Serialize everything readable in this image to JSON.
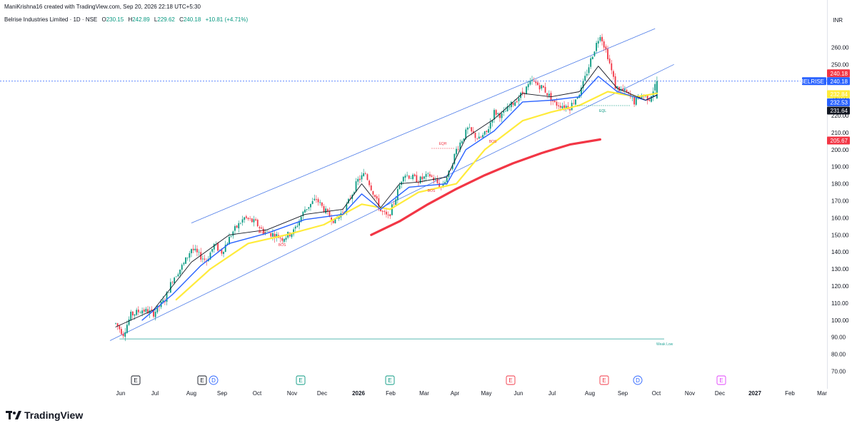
{
  "header": {
    "attribution": "ManiKrishna16 created with TradingView.com, Sep 20, 2026 22:18 UTC+5:30",
    "symbol": "Belrise Industries Limited · 1D · NSE",
    "ohlc": [
      {
        "k": "O",
        "v": "230.15"
      },
      {
        "k": "H",
        "v": "242.89"
      },
      {
        "k": "L",
        "v": "229.62"
      },
      {
        "k": "C",
        "v": "240.18"
      },
      {
        "k": "",
        "v": "+10.81 (+4.71%)"
      }
    ],
    "currency": "INR"
  },
  "brand": "TradingView",
  "colors": {
    "up": "#089981",
    "down": "#f23645",
    "ema_fast": "#131722",
    "ema_mid": "#2962ff",
    "ema_slow": "#ffeb3b",
    "sma_long": "#f23645",
    "channel": "#4c7be8",
    "weak_low": "#26a69a"
  },
  "chart_data": {
    "type": "candlestick",
    "ylim": [
      70,
      275
    ],
    "y_ticks": [
      70,
      80,
      90,
      100,
      110,
      120,
      130,
      140,
      150,
      160,
      170,
      180,
      190,
      200,
      210,
      220,
      230,
      240,
      250,
      260
    ],
    "x_ticks": [
      "Jun",
      "Jul",
      "Aug",
      "Sep",
      "Oct",
      "Nov",
      "Dec",
      "2026",
      "Feb",
      "Mar",
      "Apr",
      "May",
      "Jun",
      "Jul",
      "Aug",
      "Sep",
      "Oct",
      "Nov",
      "Dec",
      "2027",
      "Feb",
      "Mar"
    ],
    "last_price": {
      "symbol": "BELRISE",
      "value": "240.18",
      "close_label": "240.18"
    },
    "price_labels": [
      {
        "value": "232.84",
        "series": "ema_slow"
      },
      {
        "value": "232.53",
        "series": "ema_mid"
      },
      {
        "value": "231.64",
        "series": "ema_fast"
      },
      {
        "value": "205.67",
        "series": "sma_long"
      }
    ],
    "candle_path": [
      [
        0,
        98
      ],
      [
        4,
        92
      ],
      [
        8,
        103
      ],
      [
        14,
        106
      ],
      [
        20,
        104
      ],
      [
        26,
        112
      ],
      [
        30,
        124
      ],
      [
        36,
        133
      ],
      [
        40,
        142
      ],
      [
        44,
        138
      ],
      [
        48,
        135
      ],
      [
        52,
        144
      ],
      [
        56,
        140
      ],
      [
        62,
        152
      ],
      [
        68,
        160
      ],
      [
        74,
        157
      ],
      [
        78,
        152
      ],
      [
        84,
        150
      ],
      [
        88,
        148
      ],
      [
        94,
        152
      ],
      [
        100,
        165
      ],
      [
        106,
        171
      ],
      [
        112,
        162
      ],
      [
        116,
        158
      ],
      [
        122,
        167
      ],
      [
        128,
        182
      ],
      [
        132,
        186
      ],
      [
        136,
        175
      ],
      [
        140,
        164
      ],
      [
        144,
        160
      ],
      [
        148,
        172
      ],
      [
        152,
        186
      ],
      [
        156,
        184
      ],
      [
        160,
        182
      ],
      [
        166,
        185
      ],
      [
        172,
        178
      ],
      [
        176,
        186
      ],
      [
        180,
        200
      ],
      [
        186,
        212
      ],
      [
        192,
        206
      ],
      [
        196,
        210
      ],
      [
        200,
        222
      ],
      [
        204,
        220
      ],
      [
        208,
        225
      ],
      [
        214,
        232
      ],
      [
        220,
        240
      ],
      [
        226,
        236
      ],
      [
        232,
        227
      ],
      [
        236,
        226
      ],
      [
        240,
        225
      ],
      [
        246,
        235
      ],
      [
        252,
        256
      ],
      [
        256,
        268
      ],
      [
        260,
        255
      ],
      [
        264,
        237
      ],
      [
        270,
        233
      ],
      [
        274,
        228
      ],
      [
        278,
        232
      ],
      [
        282,
        230
      ],
      [
        286,
        240
      ]
    ],
    "ema_fast": [
      [
        0,
        96
      ],
      [
        20,
        106
      ],
      [
        40,
        134
      ],
      [
        60,
        150
      ],
      [
        80,
        153
      ],
      [
        100,
        162
      ],
      [
        120,
        165
      ],
      [
        130,
        180
      ],
      [
        140,
        166
      ],
      [
        150,
        180
      ],
      [
        160,
        181
      ],
      [
        175,
        184
      ],
      [
        185,
        207
      ],
      [
        200,
        218
      ],
      [
        215,
        233
      ],
      [
        230,
        231
      ],
      [
        245,
        234
      ],
      [
        255,
        249
      ],
      [
        265,
        236
      ],
      [
        280,
        229
      ],
      [
        286,
        232
      ]
    ],
    "ema_mid": [
      [
        14,
        100
      ],
      [
        30,
        115
      ],
      [
        45,
        132
      ],
      [
        60,
        145
      ],
      [
        80,
        151
      ],
      [
        100,
        159
      ],
      [
        120,
        162
      ],
      [
        130,
        174
      ],
      [
        140,
        165
      ],
      [
        155,
        178
      ],
      [
        175,
        180
      ],
      [
        185,
        200
      ],
      [
        200,
        211
      ],
      [
        215,
        228
      ],
      [
        230,
        229
      ],
      [
        245,
        231
      ],
      [
        255,
        243
      ],
      [
        265,
        234
      ],
      [
        280,
        229
      ],
      [
        286,
        232
      ]
    ],
    "ema_slow": [
      [
        32,
        112
      ],
      [
        50,
        130
      ],
      [
        70,
        145
      ],
      [
        90,
        150
      ],
      [
        110,
        156
      ],
      [
        130,
        168
      ],
      [
        145,
        165
      ],
      [
        160,
        175
      ],
      [
        180,
        180
      ],
      [
        195,
        200
      ],
      [
        215,
        217
      ],
      [
        230,
        222
      ],
      [
        245,
        226
      ],
      [
        260,
        234
      ],
      [
        275,
        231
      ],
      [
        286,
        233
      ]
    ],
    "sma_long": [
      [
        135,
        150
      ],
      [
        150,
        158
      ],
      [
        165,
        168
      ],
      [
        180,
        177
      ],
      [
        195,
        185
      ],
      [
        210,
        192
      ],
      [
        225,
        198
      ],
      [
        240,
        203
      ],
      [
        256,
        206
      ]
    ],
    "channel": [
      {
        "from": [
          40,
          157
        ],
        "to": [
          285,
          271
        ]
      },
      {
        "from": [
          -3,
          88
        ],
        "to": [
          295,
          250
        ]
      }
    ],
    "weak_low": {
      "value": 89,
      "label": "Weak Low"
    },
    "annotations": [
      {
        "text": "BOS",
        "color": "#f23645"
      },
      {
        "text": "BOS",
        "color": "#f23645"
      },
      {
        "text": "EQH",
        "color": "#f23645"
      },
      {
        "text": "BOS",
        "color": "#f23645"
      },
      {
        "text": "BOS",
        "color": "#f23645"
      },
      {
        "text": "EQL",
        "color": "#089981"
      }
    ],
    "event_markers": [
      {
        "glyph": "E",
        "color": "#131722"
      },
      {
        "glyph": "E",
        "color": "#131722"
      },
      {
        "glyph": "D",
        "color": "#2962ff"
      },
      {
        "glyph": "E",
        "color": "#089981"
      },
      {
        "glyph": "E",
        "color": "#089981"
      },
      {
        "glyph": "E",
        "color": "#f23645"
      },
      {
        "glyph": "E",
        "color": "#f23645"
      },
      {
        "glyph": "D",
        "color": "#2962ff"
      },
      {
        "glyph": "E",
        "color": "#e040fb"
      }
    ]
  }
}
